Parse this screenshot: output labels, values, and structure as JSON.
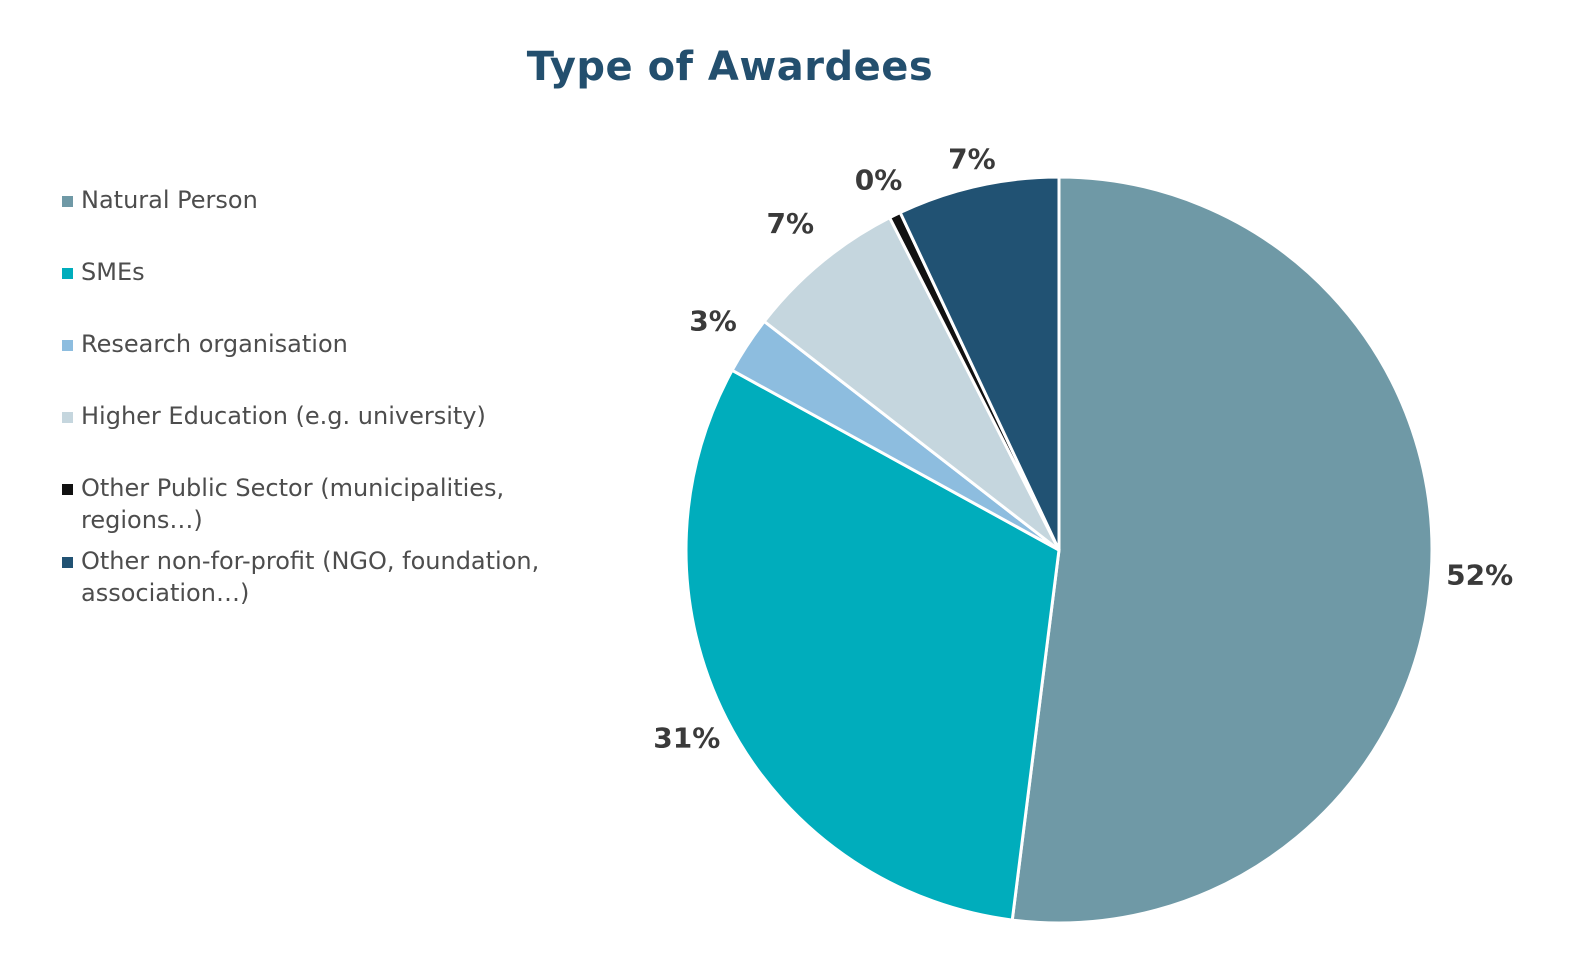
{
  "chart_data": {
    "type": "pie",
    "title": "Type of Awardees",
    "legend_position": "left",
    "slices": [
      {
        "name": "Natural Person",
        "value": 52,
        "label": "52%",
        "color": "#6f99a6"
      },
      {
        "name": "SMEs",
        "value": 31,
        "label": "31%",
        "color": "#00adbc"
      },
      {
        "name": "Research organisation",
        "value": 2.5,
        "label": "3%",
        "color": "#8dbddf"
      },
      {
        "name": "Higher Education (e.g. university)",
        "value": 7,
        "label": "7%",
        "color": "#c5d6de"
      },
      {
        "name": "Other Public Sector (municipalities, regions…)",
        "value": 0.5,
        "label": "0%",
        "color": "#111111"
      },
      {
        "name": "Other non-for-profit (NGO, foundation, association…)",
        "value": 7,
        "label": "7%",
        "color": "#215273"
      }
    ]
  }
}
